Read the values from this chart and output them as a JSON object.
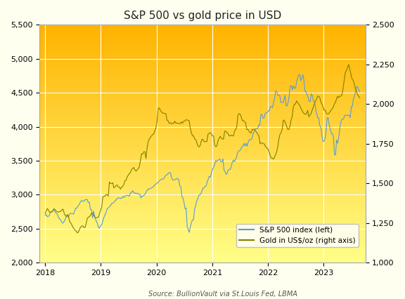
{
  "title": "S&P 500 vs gold price in USD",
  "source": "Source: BullionVault via St.Louis Fed, LBMA",
  "sp500_color": "#5B9BD5",
  "gold_color": "#808000",
  "left_ylim": [
    2000,
    5500
  ],
  "right_ylim": [
    1000,
    2500
  ],
  "left_yticks": [
    2000,
    2500,
    3000,
    3500,
    4000,
    4500,
    5000,
    5500
  ],
  "right_yticks": [
    1000,
    1250,
    1500,
    1750,
    2000,
    2250,
    2500
  ],
  "xtick_labels": [
    "2018",
    "2019",
    "2020",
    "2021",
    "2022",
    "2023"
  ],
  "xtick_positions": [
    2018.0,
    2019.0,
    2020.0,
    2021.0,
    2022.0,
    2023.0
  ],
  "xlim": [
    2017.9,
    2023.75
  ],
  "legend_sp500": "S&P 500 index (left)",
  "legend_gold": "Gold in US$/oz (right axis)",
  "grad_top_color": "#FFB300",
  "grad_bottom_color": "#FFFF88",
  "fig_bg": "#FFFFF0",
  "grid_color": "#FFFFFF",
  "sp500_weekly": [
    2695,
    2710,
    2676,
    2684,
    2695,
    2747,
    2747,
    2754,
    2786,
    2762,
    2732,
    2727,
    2691,
    2658,
    2641,
    2619,
    2590,
    2581,
    2605,
    2635,
    2671,
    2694,
    2664,
    2709,
    2728,
    2723,
    2720,
    2716,
    2760,
    2802,
    2802,
    2832,
    2847,
    2878,
    2907,
    2914,
    2906,
    2904,
    2929,
    2926,
    2929,
    2885,
    2888,
    2786,
    2781,
    2658,
    2760,
    2690,
    2632,
    2599,
    2559,
    2507,
    2521,
    2550,
    2566,
    2631,
    2673,
    2704,
    2748,
    2792,
    2806,
    2822,
    2836,
    2868,
    2878,
    2879,
    2904,
    2917,
    2939,
    2946,
    2955,
    2951,
    2945,
    2954,
    2976,
    2961,
    2977,
    2990,
    2990,
    2987,
    2978,
    3026,
    3027,
    3058,
    3040,
    3017,
    3026,
    3016,
    3020,
    3009,
    3007,
    2954,
    2978,
    2980,
    2995,
    3007,
    3039,
    3065,
    3086,
    3083,
    3091,
    3100,
    3108,
    3122,
    3141,
    3154,
    3168,
    3175,
    3196,
    3213,
    3221,
    3230,
    3231,
    3241,
    3274,
    3289,
    3295,
    3316,
    3322,
    3326,
    3257,
    3226,
    3213,
    3223,
    3225,
    3238,
    3232,
    3226,
    3130,
    3116,
    2972,
    2954,
    2882,
    2792,
    2805,
    2526,
    2488,
    2447,
    2526,
    2591,
    2630,
    2630,
    2789,
    2836,
    2912,
    2935,
    2991,
    3002,
    3010,
    3056,
    3097,
    3100,
    3122,
    3130,
    3185,
    3232,
    3271,
    3258,
    3319,
    3373,
    3401,
    3443,
    3500,
    3484,
    3508,
    3508,
    3526,
    3484,
    3484,
    3526,
    3363,
    3340,
    3298,
    3319,
    3363,
    3372,
    3372,
    3431,
    3483,
    3508,
    3484,
    3526,
    3557,
    3621,
    3647,
    3647,
    3674,
    3703,
    3710,
    3756,
    3715,
    3756,
    3714,
    3775,
    3811,
    3811,
    3811,
    3855,
    3913,
    3943,
    3974,
    3974,
    3973,
    4028,
    4019,
    4181,
    4181,
    4128,
    4128,
    4193,
    4204,
    4204,
    4233,
    4232,
    4298,
    4298,
    4280,
    4352,
    4412,
    4523,
    4523,
    4461,
    4465,
    4460,
    4358,
    4358,
    4352,
    4395,
    4463,
    4307,
    4307,
    4367,
    4463,
    4605,
    4605,
    4544,
    4602,
    4567,
    4567,
    4661,
    4712,
    4766,
    4766,
    4677,
    4711,
    4766,
    4677,
    4516,
    4516,
    4471,
    4432,
    4374,
    4374,
    4488,
    4461,
    4374,
    4374,
    4271,
    4204,
    4132,
    4132,
    4017,
    3991,
    3878,
    3785,
    3785,
    3824,
    3928,
    4130,
    4130,
    4023,
    3972,
    3901,
    3901,
    3852,
    3586,
    3586,
    3807,
    3756,
    3840,
    3970,
    4070,
    4109,
    4109,
    4133,
    4170,
    4169,
    4169,
    4169,
    4169,
    4133,
    4299,
    4299,
    4416,
    4450,
    4515,
    4589,
    4589,
    4540,
    4516
  ],
  "gold_weekly": [
    1310,
    1328,
    1341,
    1330,
    1318,
    1318,
    1320,
    1329,
    1340,
    1334,
    1324,
    1322,
    1318,
    1322,
    1324,
    1332,
    1338,
    1316,
    1298,
    1291,
    1304,
    1295,
    1260,
    1252,
    1239,
    1224,
    1214,
    1205,
    1199,
    1188,
    1193,
    1211,
    1223,
    1232,
    1232,
    1221,
    1223,
    1248,
    1279,
    1287,
    1290,
    1300,
    1313,
    1311,
    1295,
    1284,
    1283,
    1285,
    1286,
    1306,
    1330,
    1349,
    1413,
    1418,
    1420,
    1430,
    1428,
    1420,
    1509,
    1499,
    1498,
    1504,
    1472,
    1476,
    1487,
    1490,
    1478,
    1476,
    1464,
    1477,
    1481,
    1493,
    1517,
    1519,
    1540,
    1552,
    1562,
    1569,
    1589,
    1593,
    1601,
    1584,
    1577,
    1585,
    1593,
    1605,
    1644,
    1686,
    1684,
    1700,
    1700,
    1657,
    1724,
    1763,
    1780,
    1789,
    1800,
    1808,
    1812,
    1831,
    1850,
    1892,
    1975,
    1975,
    1961,
    1951,
    1945,
    1942,
    1940,
    1940,
    1897,
    1895,
    1879,
    1882,
    1875,
    1879,
    1879,
    1892,
    1880,
    1880,
    1879,
    1878,
    1877,
    1888,
    1879,
    1892,
    1893,
    1901,
    1900,
    1898,
    1895,
    1847,
    1820,
    1800,
    1798,
    1780,
    1776,
    1754,
    1736,
    1730,
    1740,
    1768,
    1780,
    1769,
    1762,
    1763,
    1764,
    1810,
    1815,
    1820,
    1814,
    1800,
    1798,
    1742,
    1732,
    1736,
    1766,
    1784,
    1797,
    1785,
    1780,
    1779,
    1829,
    1830,
    1820,
    1816,
    1800,
    1799,
    1804,
    1800,
    1800,
    1830,
    1840,
    1858,
    1930,
    1940,
    1936,
    1920,
    1896,
    1896,
    1890,
    1880,
    1840,
    1840,
    1830,
    1820,
    1818,
    1840,
    1840,
    1840,
    1830,
    1820,
    1810,
    1798,
    1750,
    1755,
    1756,
    1750,
    1748,
    1730,
    1726,
    1720,
    1700,
    1680,
    1660,
    1660,
    1653,
    1665,
    1680,
    1700,
    1730,
    1780,
    1810,
    1820,
    1842,
    1900,
    1895,
    1880,
    1860,
    1840,
    1840,
    1860,
    1900,
    1920,
    1980,
    2000,
    2000,
    2020,
    2010,
    2000,
    1990,
    1970,
    1960,
    1945,
    1940,
    1935,
    1940,
    1960,
    1920,
    1930,
    1940,
    1960,
    1980,
    2000,
    2020,
    2030,
    2050,
    2050,
    2040,
    2010,
    2000,
    1980,
    1960,
    1960,
    1940,
    1938,
    1940,
    1950,
    1960,
    1970,
    1980,
    2000,
    2010,
    2030,
    2050,
    2040,
    2050,
    2050,
    2060,
    2100,
    2150,
    2200,
    2210,
    2230,
    2250,
    2220,
    2190,
    2160,
    2150,
    2130,
    2100,
    2080,
    2060,
    2050,
    2040
  ]
}
